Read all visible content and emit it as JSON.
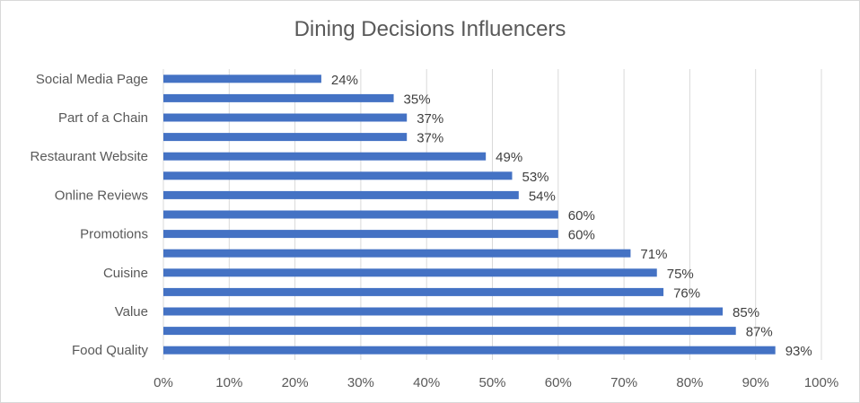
{
  "chart_data": {
    "type": "bar",
    "orientation": "horizontal",
    "title": "Dining Decisions Influencers",
    "xlabel": "",
    "ylabel": "",
    "xlim": [
      0,
      1.0
    ],
    "x_ticks": [
      "0%",
      "10%",
      "20%",
      "30%",
      "40%",
      "50%",
      "60%",
      "70%",
      "80%",
      "90%",
      "100%"
    ],
    "grid": "vertical",
    "legend": "none",
    "bar_color": "#4472c4",
    "categories": [
      "Food Quality",
      "",
      "Value",
      "",
      "Cuisine",
      "",
      "Promotions",
      "",
      "Online Reviews",
      "",
      "Restaurant Website",
      "",
      "Part of a Chain",
      "",
      "Social Media Page"
    ],
    "values": [
      0.93,
      0.87,
      0.85,
      0.76,
      0.75,
      0.71,
      0.6,
      0.6,
      0.54,
      0.53,
      0.49,
      0.37,
      0.37,
      0.35,
      0.24
    ],
    "data_labels": [
      "93%",
      "87%",
      "85%",
      "76%",
      "75%",
      "71%",
      "60%",
      "60%",
      "54%",
      "53%",
      "49%",
      "37%",
      "37%",
      "35%",
      "24%"
    ]
  }
}
